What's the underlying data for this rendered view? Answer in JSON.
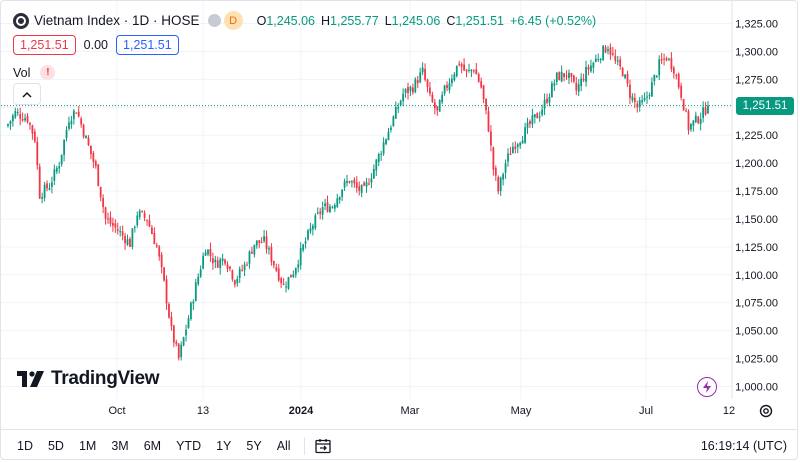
{
  "header": {
    "symbol_title": "Vietnam Index · 1D · HOSE",
    "interval_badge": "D",
    "ohlc": {
      "open_label": "O",
      "open": "1,245.06",
      "high_label": "H",
      "high": "1,255.77",
      "low_label": "L",
      "low": "1,245.06",
      "close_label": "C",
      "close": "1,251.51",
      "change": "+6.45 (+0.52%)"
    },
    "sell_price": "1,251.51",
    "spread": "0.00",
    "buy_price": "1,251.51",
    "volume_label": "Vol",
    "warning_glyph": "!"
  },
  "last_price_tag": "1,251.51",
  "watermark": "TradingView",
  "toolbar": {
    "ranges": [
      "1D",
      "5D",
      "1M",
      "3M",
      "6M",
      "YTD",
      "1Y",
      "5Y",
      "All"
    ],
    "clock": "16:19:14 (UTC)"
  },
  "colors": {
    "up": "#089981",
    "down": "#f23645",
    "accent": "#2962ff"
  },
  "chart_data": {
    "type": "candlestick",
    "y_axis": {
      "ticks": [
        "1,325.00",
        "1,300.00",
        "1,275.00",
        "1,250.00",
        "1,225.00",
        "1,200.00",
        "1,175.00",
        "1,150.00",
        "1,125.00",
        "1,100.00",
        "1,075.00",
        "1,050.00",
        "1,025.00",
        "1,000.00"
      ],
      "range": [
        995,
        1330
      ]
    },
    "x_axis": {
      "ticks": [
        "Oct",
        "13",
        "2024",
        "Mar",
        "May",
        "Jul",
        "12"
      ]
    },
    "last_price": 1251.51,
    "series_path": [
      [
        0,
        1235
      ],
      [
        3,
        1245
      ],
      [
        8,
        1240
      ],
      [
        11,
        1222
      ],
      [
        13,
        1172
      ],
      [
        17,
        1180
      ],
      [
        21,
        1200
      ],
      [
        25,
        1240
      ],
      [
        28,
        1248
      ],
      [
        31,
        1228
      ],
      [
        36,
        1195
      ],
      [
        40,
        1150
      ],
      [
        45,
        1140
      ],
      [
        50,
        1128
      ],
      [
        53,
        1155
      ],
      [
        57,
        1150
      ],
      [
        61,
        1125
      ],
      [
        64,
        1092
      ],
      [
        67,
        1050
      ],
      [
        70,
        1025
      ],
      [
        73,
        1052
      ],
      [
        77,
        1090
      ],
      [
        81,
        1125
      ],
      [
        85,
        1110
      ],
      [
        89,
        1115
      ],
      [
        93,
        1095
      ],
      [
        97,
        1108
      ],
      [
        101,
        1128
      ],
      [
        105,
        1130
      ],
      [
        109,
        1110
      ],
      [
        113,
        1090
      ],
      [
        117,
        1103
      ],
      [
        121,
        1125
      ],
      [
        125,
        1145
      ],
      [
        129,
        1160
      ],
      [
        133,
        1162
      ],
      [
        137,
        1178
      ],
      [
        140,
        1185
      ],
      [
        143,
        1177
      ],
      [
        146,
        1175
      ],
      [
        150,
        1195
      ],
      [
        154,
        1218
      ],
      [
        158,
        1240
      ],
      [
        162,
        1262
      ],
      [
        166,
        1268
      ],
      [
        170,
        1282
      ],
      [
        173,
        1258
      ],
      [
        176,
        1245
      ],
      [
        179,
        1265
      ],
      [
        182,
        1278
      ],
      [
        185,
        1290
      ],
      [
        188,
        1280
      ],
      [
        191,
        1285
      ],
      [
        194,
        1268
      ],
      [
        197,
        1232
      ],
      [
        199,
        1195
      ],
      [
        201,
        1175
      ],
      [
        204,
        1200
      ],
      [
        207,
        1215
      ],
      [
        211,
        1225
      ],
      [
        215,
        1238
      ],
      [
        218,
        1245
      ],
      [
        221,
        1258
      ],
      [
        225,
        1277
      ],
      [
        229,
        1280
      ],
      [
        233,
        1265
      ],
      [
        237,
        1282
      ],
      [
        240,
        1290
      ],
      [
        243,
        1298
      ],
      [
        246,
        1305
      ],
      [
        249,
        1290
      ],
      [
        252,
        1282
      ],
      [
        255,
        1262
      ],
      [
        258,
        1250
      ],
      [
        261,
        1255
      ],
      [
        264,
        1270
      ],
      [
        267,
        1288
      ],
      [
        270,
        1295
      ],
      [
        273,
        1285
      ],
      [
        276,
        1262
      ],
      [
        279,
        1232
      ],
      [
        282,
        1238
      ],
      [
        285,
        1245
      ],
      [
        287,
        1251.51
      ]
    ]
  }
}
